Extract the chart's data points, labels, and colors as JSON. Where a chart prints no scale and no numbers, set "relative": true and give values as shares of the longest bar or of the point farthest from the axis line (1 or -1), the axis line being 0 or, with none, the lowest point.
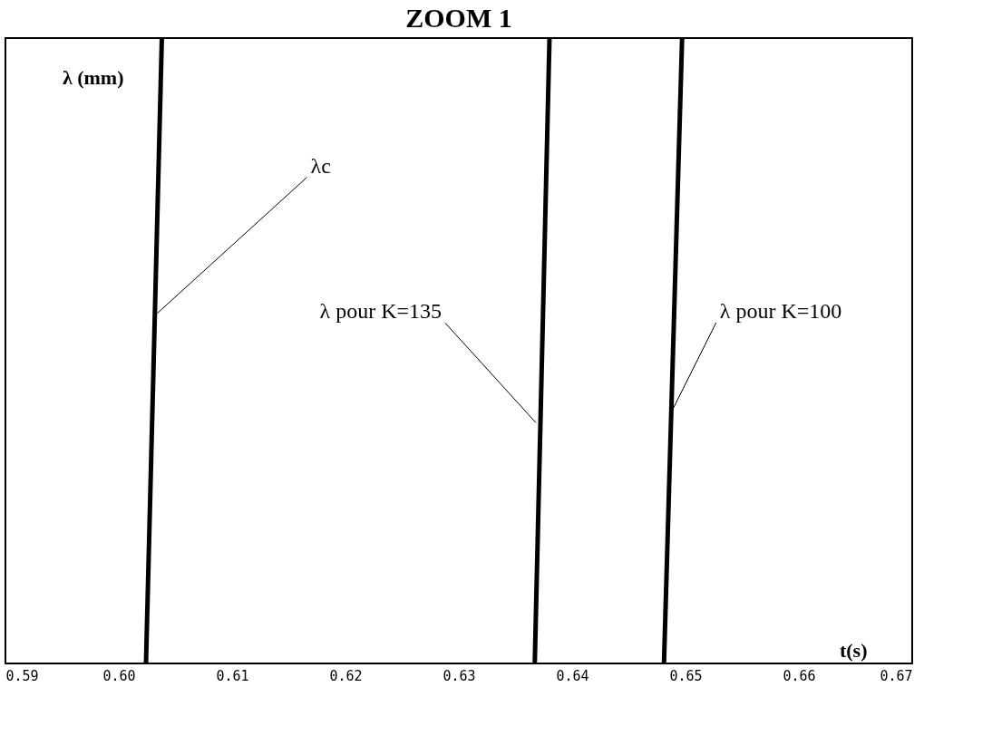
{
  "chart_data": {
    "type": "line",
    "title": "ZOOM 1",
    "xlabel": "t(s)",
    "ylabel": "λ (mm)",
    "relative": true,
    "xlim": [
      0.59,
      0.67
    ],
    "xticks": [
      0.59,
      {
        "value": 0.6,
        "label": "0.60"
      },
      0.61,
      0.62,
      0.63,
      0.64,
      0.65,
      0.66,
      0.67
    ],
    "series": [
      {
        "color": "#000000",
        "x": [
          0.6024,
          0.6038
        ],
        "values": [
          0,
          1
        ]
      },
      {
        "color": "#000000",
        "x": [
          0.6367,
          0.638
        ],
        "values": [
          0,
          1
        ]
      },
      {
        "color": "#000000",
        "x": [
          0.6481,
          0.6497
        ],
        "values": [
          0,
          1
        ]
      }
    ],
    "annotations": [
      {
        "text": "λc",
        "x": 0.6034,
        "y": 0.56
      },
      {
        "text": "λ pour K=135",
        "x": 0.6368,
        "y": 0.385
      },
      {
        "text": "λ pour K=100",
        "x": 0.6487,
        "y": 0.4
      }
    ],
    "grid": false,
    "line_style": "solid",
    "marker": "none"
  }
}
